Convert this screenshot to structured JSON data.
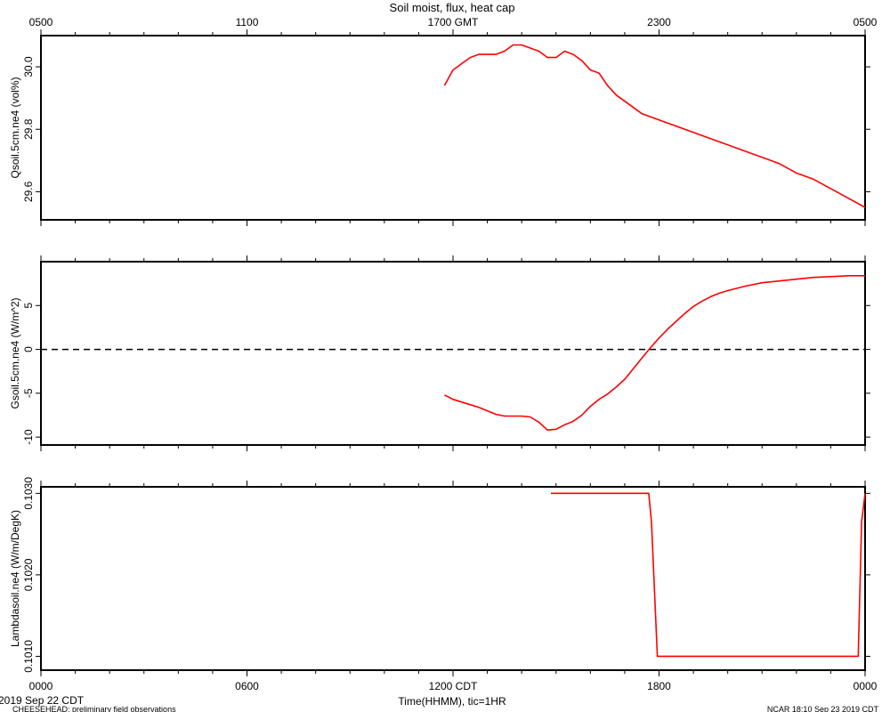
{
  "title": "Soil moist, flux, heat cap",
  "top_axis": {
    "ticks": [
      "0500",
      "1100",
      "1700 GMT",
      "2300",
      "0500"
    ]
  },
  "bottom_axis": {
    "ticks": [
      "0000",
      "0600",
      "1200 CDT",
      "1800",
      "0000"
    ],
    "label": "Time(HHMM), tic=1HR"
  },
  "footer": {
    "date": "2019 Sep 22 CDT",
    "project": "CHEESEHEAD: preliminary field observations",
    "stamp": "NCAR 18:10 Sep 23 2019 CDT"
  },
  "colors": {
    "series": "#ff0000",
    "axes": "#000000",
    "zero_line": "#000000"
  },
  "chart_data": [
    {
      "type": "line",
      "ylabel": "Qsoil.5cm.ne4 (vol%)",
      "xlim": [
        0,
        24
      ],
      "ylim": [
        29.51,
        30.1
      ],
      "yticks": [
        29.6,
        29.8,
        30.0
      ],
      "yticklabels": [
        "29.6",
        "29.8",
        "30.0"
      ],
      "series": [
        {
          "x": [
            11.75,
            12.0,
            12.25,
            12.5,
            12.75,
            13.0,
            13.25,
            13.5,
            13.75,
            14.0,
            14.25,
            14.5,
            14.75,
            15.0,
            15.25,
            15.5,
            15.75,
            16.0,
            16.25,
            16.5,
            16.75,
            17.0,
            17.25,
            17.5,
            17.75,
            18.0,
            18.25,
            18.5,
            18.75,
            19.0,
            19.25,
            19.5,
            19.75,
            20.0,
            20.5,
            21.0,
            21.5,
            22.0,
            22.5,
            23.0,
            23.5,
            24.0
          ],
          "y": [
            29.94,
            29.99,
            30.01,
            30.03,
            30.04,
            30.04,
            30.04,
            30.05,
            30.07,
            30.07,
            30.06,
            30.05,
            30.03,
            30.03,
            30.05,
            30.04,
            30.02,
            29.99,
            29.98,
            29.94,
            29.91,
            29.89,
            29.87,
            29.85,
            29.84,
            29.83,
            29.82,
            29.81,
            29.8,
            29.79,
            29.78,
            29.77,
            29.76,
            29.75,
            29.73,
            29.71,
            29.69,
            29.66,
            29.64,
            29.61,
            29.58,
            29.55
          ]
        }
      ]
    },
    {
      "type": "line",
      "ylabel": "Gsoil.5cm.ne4 (W/m^2)",
      "xlim": [
        0,
        24
      ],
      "ylim": [
        -10.9,
        10.0
      ],
      "yticks": [
        -10,
        -5,
        0,
        5
      ],
      "yticklabels": [
        "-10",
        "-5",
        "0",
        "5"
      ],
      "reference_line": 0,
      "series": [
        {
          "x": [
            11.75,
            12.0,
            12.25,
            12.5,
            12.75,
            13.0,
            13.25,
            13.5,
            13.75,
            14.0,
            14.25,
            14.5,
            14.75,
            15.0,
            15.25,
            15.5,
            15.75,
            16.0,
            16.25,
            16.5,
            16.75,
            17.0,
            17.25,
            17.5,
            17.75,
            18.0,
            18.25,
            18.5,
            18.75,
            19.0,
            19.25,
            19.5,
            19.75,
            20.0,
            20.5,
            21.0,
            21.5,
            22.0,
            22.5,
            23.0,
            23.5,
            24.0
          ],
          "y": [
            -5.2,
            -5.7,
            -6.0,
            -6.3,
            -6.6,
            -7.0,
            -7.4,
            -7.6,
            -7.6,
            -7.6,
            -7.7,
            -8.3,
            -9.2,
            -9.1,
            -8.6,
            -8.2,
            -7.5,
            -6.5,
            -5.7,
            -5.1,
            -4.3,
            -3.4,
            -2.2,
            -1.0,
            0.2,
            1.3,
            2.3,
            3.2,
            4.1,
            4.9,
            5.5,
            6.0,
            6.4,
            6.7,
            7.2,
            7.6,
            7.8,
            8.0,
            8.2,
            8.3,
            8.4,
            8.4
          ]
        }
      ]
    },
    {
      "type": "line",
      "ylabel": "Lambdasoil.ne4 (W/m/DegK)",
      "xlim": [
        0,
        24
      ],
      "ylim": [
        0.10083,
        0.10308
      ],
      "yticks": [
        0.101,
        0.102,
        0.103
      ],
      "yticklabels": [
        "0.1010",
        "0.1020",
        "0.1030"
      ],
      "series": [
        {
          "x": [
            14.85,
            17.7,
            17.78,
            17.95,
            23.8,
            23.9,
            24.0
          ],
          "y": [
            0.103,
            0.103,
            0.10265,
            0.101,
            0.101,
            0.10265,
            0.103
          ]
        }
      ]
    }
  ]
}
